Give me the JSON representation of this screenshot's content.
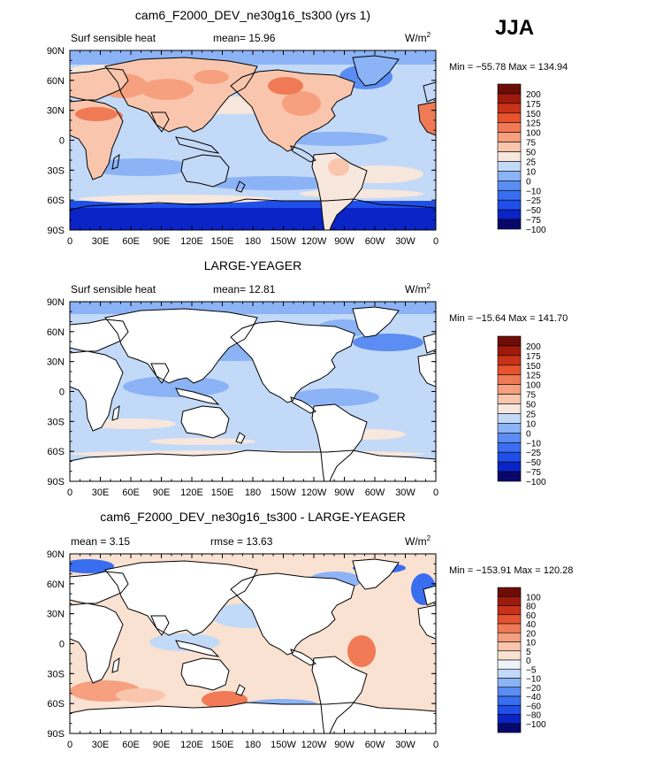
{
  "season": "JJA",
  "units": "W/m",
  "units_exp": "2",
  "lat_ticks": [
    "90N",
    "60N",
    "30N",
    "0",
    "30S",
    "60S",
    "90S"
  ],
  "lon_ticks": [
    "0",
    "30E",
    "60E",
    "90E",
    "120E",
    "150E",
    "180",
    "150W",
    "120W",
    "90W",
    "60W",
    "30W",
    "0"
  ],
  "colors_main": [
    "#08086b",
    "#0a24c8",
    "#1f4ee8",
    "#3a6ef0",
    "#5b8df2",
    "#8bb3f5",
    "#c3d9f8",
    "#f8e7dc",
    "#f9c6ad",
    "#f6a07f",
    "#f07a56",
    "#e5532f",
    "#c83218",
    "#9e1b0c",
    "#6d0d06"
  ],
  "colors_diff": [
    "#08086b",
    "#0a24c8",
    "#1f4ee8",
    "#3a6ef0",
    "#5b8df2",
    "#8bb3f5",
    "#c3d9f8",
    "#eef3f9",
    "#f9e2d2",
    "#f9c6ad",
    "#f6a07f",
    "#f07a56",
    "#e5532f",
    "#c83218",
    "#9e1b0c",
    "#6d0d06"
  ],
  "panels": [
    {
      "title": "cam6_F2000_DEV_ne30g16_ts300 (yrs 1)",
      "left_text": "Surf sensible heat",
      "mean_text": "mean=   15.96",
      "right_text": "",
      "minmax": "Min = −55.78 Max = 134.94",
      "legend_labels": [
        "200",
        "175",
        "150",
        "125",
        "100",
        "75",
        "50",
        "25",
        "10",
        "0",
        "−10",
        "−25",
        "−50",
        "−75",
        "−100"
      ]
    },
    {
      "title": "LARGE-YEAGER",
      "left_text": "Surf sensible heat",
      "mean_text": "mean=   12.81",
      "right_text": "",
      "minmax": "Min = −15.64 Max = 141.70",
      "legend_labels": [
        "200",
        "175",
        "150",
        "125",
        "100",
        "75",
        "50",
        "25",
        "10",
        "0",
        "−10",
        "−25",
        "−50",
        "−75",
        "−100"
      ]
    },
    {
      "title": "cam6_F2000_DEV_ne30g16_ts300 - LARGE-YEAGER",
      "left_text": "mean =    3.15",
      "mean_text": "",
      "right_text": "rmse =   13.63",
      "minmax": "Min = −153.91 Max = 120.28",
      "legend_labels": [
        "100",
        "80",
        "60",
        "40",
        "20",
        "10",
        "5",
        "0",
        "−5",
        "−10",
        "−20",
        "−40",
        "−60",
        "−80",
        "−100"
      ]
    }
  ],
  "chart_data": [
    {
      "type": "heatmap",
      "title": "cam6_F2000_DEV_ne30g16_ts300 (yrs 1)",
      "variable": "Surf sensible heat",
      "units": "W/m^2",
      "mean": 15.96,
      "min": -55.78,
      "max": 134.94,
      "contour_levels": [
        -100,
        -75,
        -50,
        -25,
        -10,
        0,
        10,
        25,
        50,
        75,
        100,
        125,
        150,
        175,
        200
      ],
      "xlabel": "",
      "ylabel": "",
      "xlim": [
        0,
        360
      ],
      "ylim": [
        -90,
        90
      ]
    },
    {
      "type": "heatmap",
      "title": "LARGE-YEAGER",
      "variable": "Surf sensible heat",
      "units": "W/m^2",
      "mean": 12.81,
      "min": -15.64,
      "max": 141.7,
      "contour_levels": [
        -100,
        -75,
        -50,
        -25,
        -10,
        0,
        10,
        25,
        50,
        75,
        100,
        125,
        150,
        175,
        200
      ],
      "xlim": [
        0,
        360
      ],
      "ylim": [
        -90,
        90
      ]
    },
    {
      "type": "heatmap",
      "title": "cam6_F2000_DEV_ne30g16_ts300 - LARGE-YEAGER",
      "units": "W/m^2",
      "mean": 3.15,
      "rmse": 13.63,
      "min": -153.91,
      "max": 120.28,
      "contour_levels": [
        -100,
        -80,
        -60,
        -40,
        -20,
        -10,
        -5,
        0,
        5,
        10,
        20,
        40,
        60,
        80,
        100
      ],
      "xlim": [
        0,
        360
      ],
      "ylim": [
        -90,
        90
      ]
    }
  ]
}
